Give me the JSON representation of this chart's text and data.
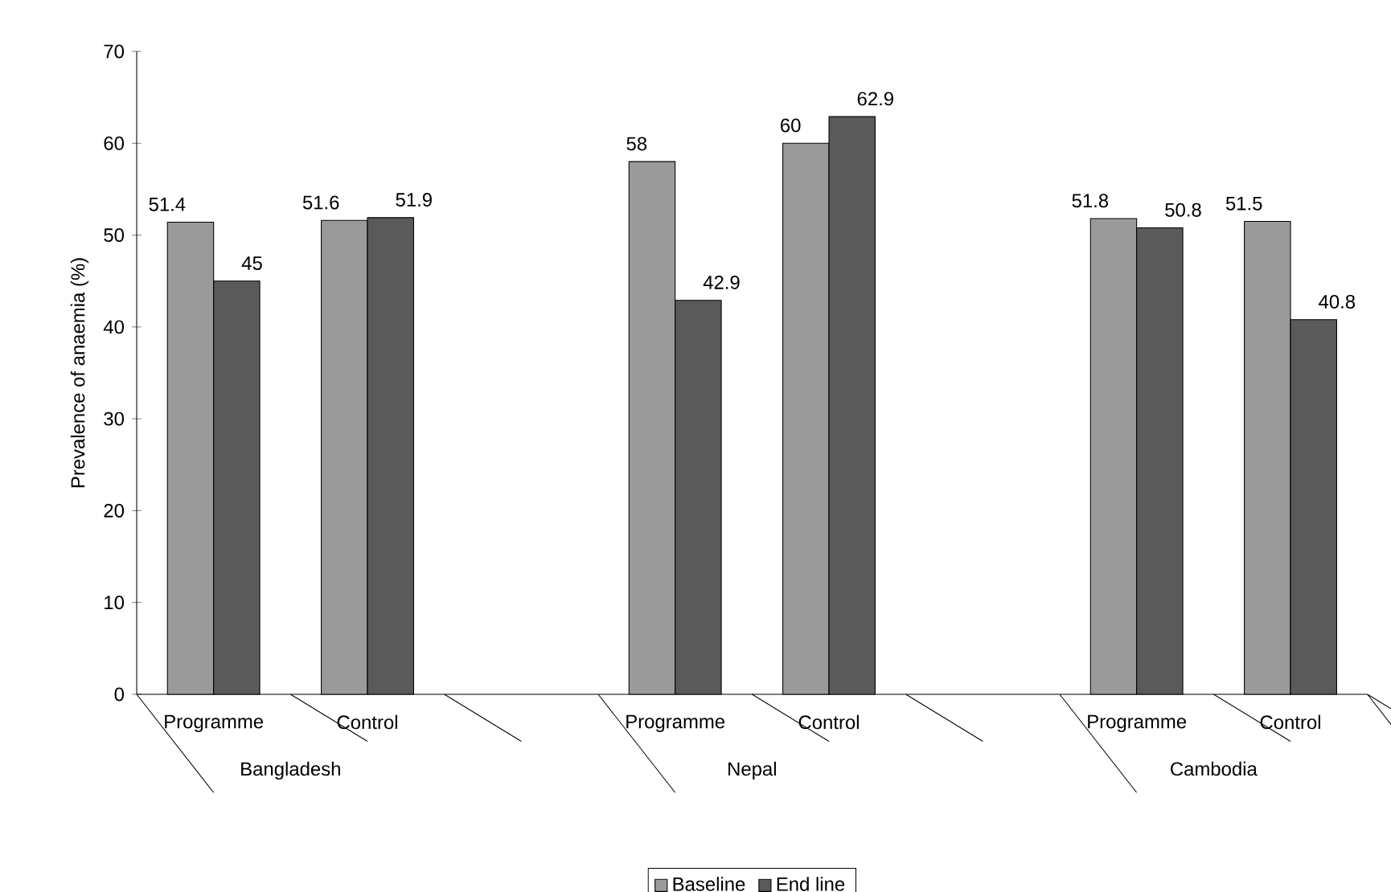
{
  "chart_data": {
    "type": "bar",
    "ylabel": "Prevalence of anaemia (%)",
    "categories": [
      "Programme",
      "Control",
      null,
      "Programme",
      "Control",
      null,
      "Programme",
      "Control"
    ],
    "series": [
      {
        "name": "Baseline",
        "color": "#9a9a9a",
        "values": [
          51.4,
          51.6,
          null,
          58,
          60,
          null,
          51.8,
          51.5
        ]
      },
      {
        "name": "End line",
        "color": "#5a5a5a",
        "values": [
          45,
          51.9,
          null,
          42.9,
          62.9,
          null,
          50.8,
          40.8
        ]
      }
    ],
    "annotations": [
      "Bangladesh",
      "Nepal",
      "Cambodia"
    ],
    "ylim": [
      0,
      70
    ],
    "yticks": [
      0,
      10,
      20,
      30,
      40,
      50,
      60,
      70
    ],
    "data_labels": true,
    "grid": false,
    "legend": "bottom"
  }
}
